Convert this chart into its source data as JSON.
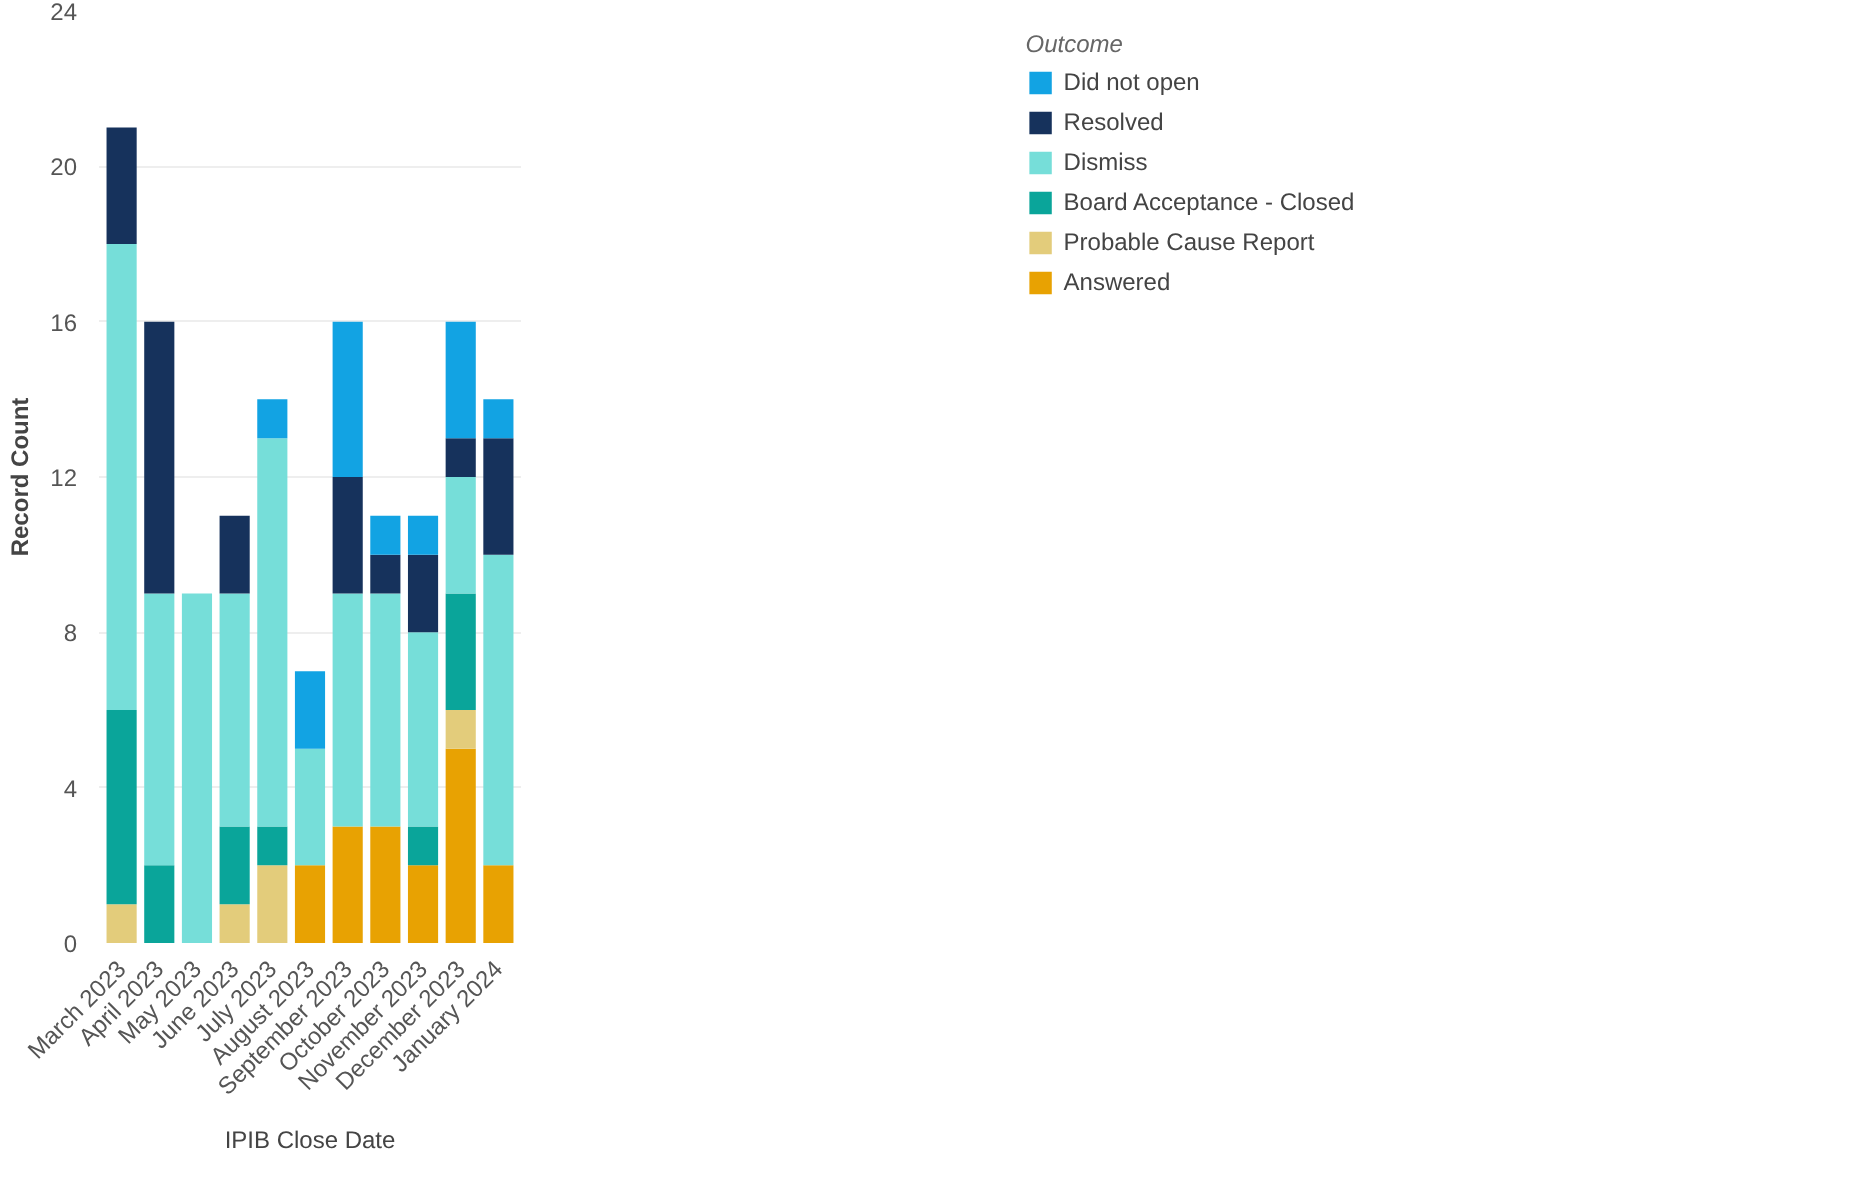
{
  "chart_data": {
    "type": "bar",
    "stacked": true,
    "xlabel": "IPIB Close Date",
    "ylabel": "Record Count",
    "legend_title": "Outcome",
    "categories": [
      "March 2023",
      "April 2023",
      "May 2023",
      "June 2023",
      "July 2023",
      "August 2023",
      "September 2023",
      "October 2023",
      "November 2023",
      "December 2023",
      "January 2024"
    ],
    "series": [
      {
        "name": "Answered",
        "color": "#e8a202",
        "values": [
          0,
          0,
          0,
          0,
          0,
          2,
          3,
          3,
          2,
          5,
          2
        ]
      },
      {
        "name": "Probable Cause Report",
        "color": "#e3cc7b",
        "values": [
          1,
          0,
          0,
          1,
          2,
          0,
          0,
          0,
          0,
          1,
          0
        ]
      },
      {
        "name": "Board Acceptance - Closed",
        "color": "#0aa59a",
        "values": [
          5,
          2,
          0,
          2,
          1,
          0,
          0,
          0,
          1,
          3,
          0
        ]
      },
      {
        "name": "Dismiss",
        "color": "#76ded9",
        "values": [
          12,
          7,
          9,
          6,
          10,
          3,
          6,
          6,
          5,
          3,
          8
        ]
      },
      {
        "name": "Resolved",
        "color": "#16325c",
        "values": [
          3,
          7,
          0,
          2,
          0,
          0,
          3,
          1,
          2,
          1,
          3
        ]
      },
      {
        "name": "Did not open",
        "color": "#12a3e3",
        "values": [
          0,
          0,
          0,
          0,
          1,
          2,
          4,
          1,
          1,
          3,
          1
        ]
      }
    ],
    "ylim": [
      0,
      24
    ],
    "yticks": [
      0,
      4,
      8,
      12,
      16,
      20,
      24
    ],
    "grid": "y",
    "legend": "top right"
  }
}
